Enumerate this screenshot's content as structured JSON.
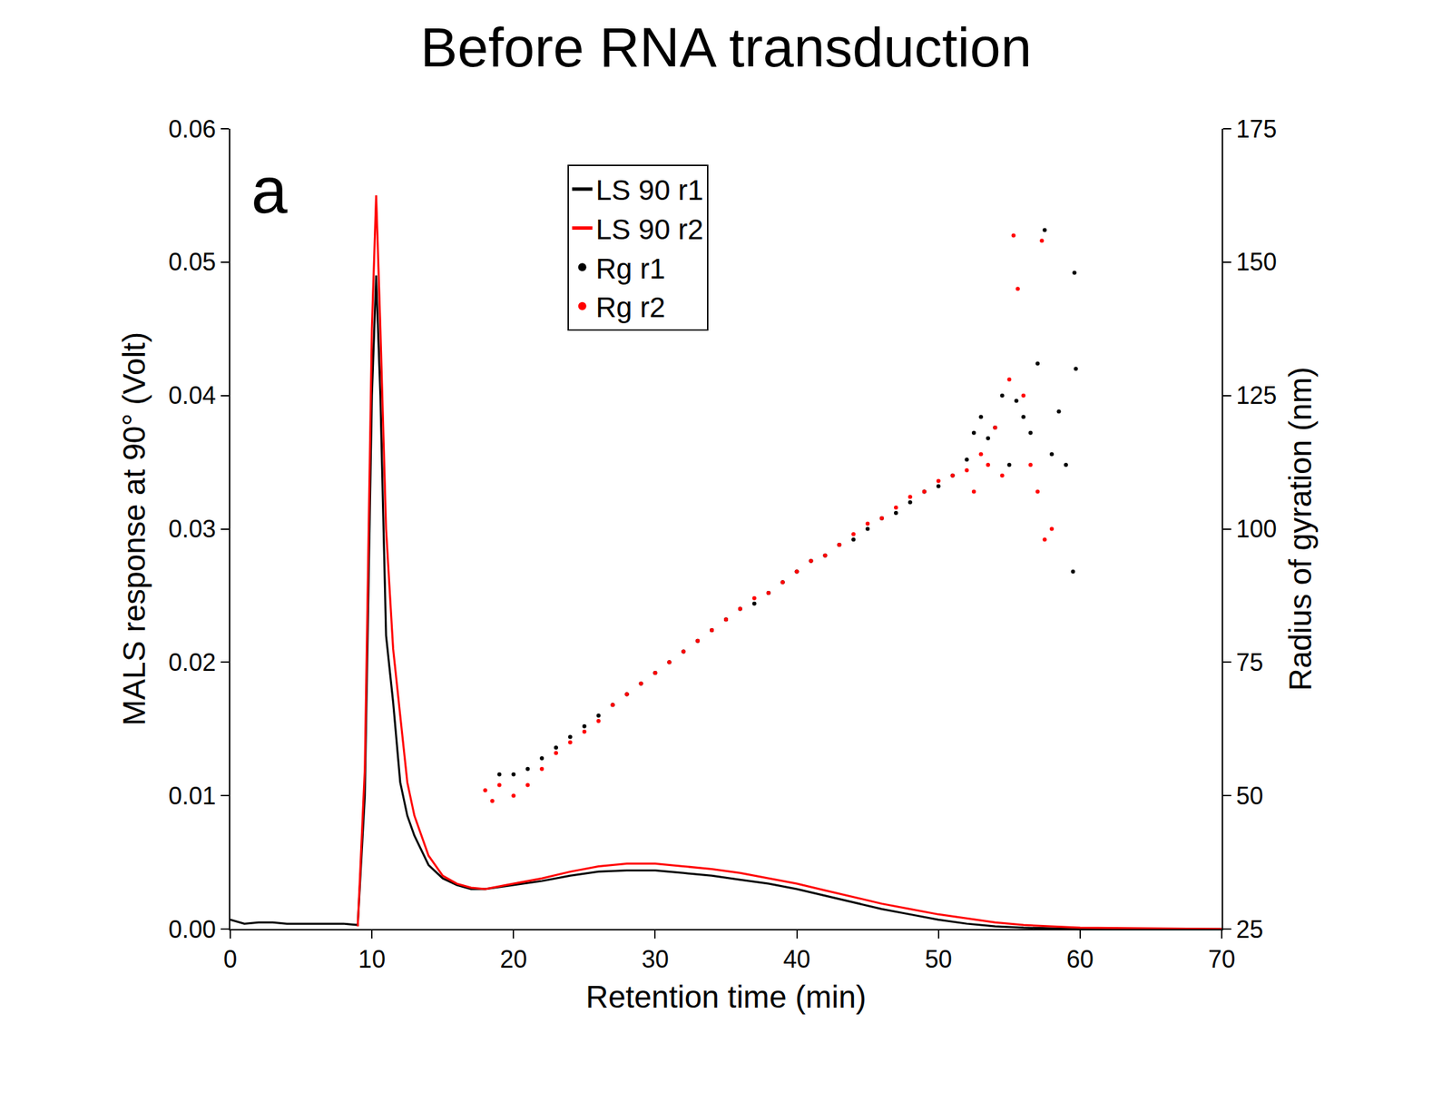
{
  "chart_data": {
    "type": "line",
    "title": "Before RNA transduction",
    "annotations": [
      "a"
    ],
    "x_label": "Retention time (min)",
    "y_label": "MALS response at 90° (Volt)",
    "y2_label": "Radius of gyration (nm)",
    "xlim": [
      0,
      70
    ],
    "xticks": [
      0,
      10,
      20,
      30,
      40,
      50,
      60,
      70
    ],
    "ylim": [
      0,
      0.06
    ],
    "yticks": [
      {
        "value": 0,
        "label": "0.00"
      },
      0.01,
      0.02,
      0.03,
      0.04,
      0.05,
      0.06
    ],
    "y2lim": [
      25,
      175
    ],
    "y2ticks": [
      25,
      50,
      75,
      100,
      125,
      150,
      175
    ],
    "grid": false,
    "legend": "top",
    "series": [
      {
        "name": "LS 90 r1",
        "type": "line",
        "color": "#000000",
        "line_style": "solid",
        "x": [
          0,
          1,
          2,
          3,
          4,
          5,
          6,
          7,
          8,
          9,
          9.5,
          10,
          10.3,
          10.6,
          11,
          11.5,
          12,
          12.5,
          13,
          14,
          15,
          16,
          17,
          18,
          20,
          22,
          24,
          26,
          28,
          30,
          32,
          34,
          36,
          38,
          40,
          42,
          44,
          46,
          48,
          50,
          52,
          54,
          56,
          58,
          60,
          65,
          70
        ],
        "values": [
          0.0007,
          0.0004,
          0.0005,
          0.0005,
          0.0004,
          0.0004,
          0.0004,
          0.0004,
          0.0004,
          0.0003,
          0.01,
          0.04,
          0.049,
          0.04,
          0.022,
          0.017,
          0.011,
          0.0085,
          0.007,
          0.0048,
          0.0038,
          0.0033,
          0.003,
          0.003,
          0.0033,
          0.0036,
          0.004,
          0.0043,
          0.0044,
          0.0044,
          0.0042,
          0.004,
          0.0037,
          0.0034,
          0.003,
          0.0025,
          0.002,
          0.0015,
          0.0011,
          0.0007,
          0.0004,
          0.0002,
          0.0001,
          5e-05,
          0,
          0,
          0
        ]
      },
      {
        "name": "LS 90 r2",
        "type": "line",
        "color": "#ff0000",
        "line_style": "solid",
        "x": [
          9,
          9.5,
          10,
          10.3,
          10.6,
          11,
          11.5,
          12,
          12.5,
          13,
          14,
          15,
          16,
          17,
          18,
          20,
          22,
          24,
          26,
          28,
          30,
          32,
          34,
          36,
          38,
          40,
          42,
          44,
          46,
          48,
          50,
          52,
          54,
          56,
          58,
          60,
          65,
          70
        ],
        "values": [
          0.0002,
          0.012,
          0.045,
          0.055,
          0.045,
          0.03,
          0.021,
          0.016,
          0.011,
          0.0085,
          0.0055,
          0.004,
          0.0034,
          0.0031,
          0.003,
          0.0034,
          0.0038,
          0.0043,
          0.0047,
          0.0049,
          0.0049,
          0.0047,
          0.0045,
          0.0042,
          0.0038,
          0.0034,
          0.0029,
          0.0024,
          0.0019,
          0.0015,
          0.0011,
          0.0008,
          0.0005,
          0.0003,
          0.0002,
          0.0001,
          5e-05,
          0
        ]
      },
      {
        "name": "Rg r1",
        "type": "scatter",
        "axis": "y2",
        "color": "#000000",
        "marker": "circle",
        "x": [
          19,
          20,
          21,
          22,
          23,
          24,
          25,
          26,
          27,
          28,
          29,
          30,
          31,
          32,
          33,
          34,
          35,
          36,
          37,
          38,
          39,
          40,
          41,
          42,
          43,
          44,
          45,
          46,
          47,
          48,
          49,
          50,
          51,
          52,
          52.5,
          53,
          53.5,
          54,
          54.5,
          55,
          55.5,
          56,
          56.5,
          57,
          57.5,
          58,
          58.5,
          59,
          59.5,
          59.6,
          59.7
        ],
        "values": [
          54,
          54,
          55,
          57,
          59,
          61,
          63,
          65,
          67,
          69,
          71,
          73,
          75,
          77,
          79,
          81,
          83,
          85,
          86,
          88,
          90,
          92,
          94,
          95,
          97,
          98,
          100,
          102,
          103,
          105,
          107,
          108,
          110,
          113,
          118,
          121,
          117,
          119,
          125,
          112,
          124,
          121,
          118,
          131,
          156,
          114,
          122,
          112,
          92,
          148,
          130
        ]
      },
      {
        "name": "Rg r2",
        "type": "scatter",
        "axis": "y2",
        "color": "#ff0000",
        "marker": "circle",
        "x": [
          18,
          18.5,
          19,
          20,
          21,
          22,
          23,
          24,
          25,
          26,
          27,
          28,
          29,
          30,
          31,
          32,
          33,
          34,
          35,
          36,
          37,
          38,
          39,
          40,
          41,
          42,
          43,
          44,
          45,
          46,
          47,
          48,
          49,
          50,
          51,
          52,
          52.5,
          53,
          53.5,
          54,
          54.5,
          55,
          55.3,
          55.6,
          56,
          56.5,
          57,
          57.3,
          57.5,
          58
        ],
        "values": [
          51,
          49,
          52,
          50,
          52,
          55,
          58,
          60,
          62,
          64,
          67,
          69,
          71,
          73,
          75,
          77,
          79,
          81,
          83,
          85,
          87,
          88,
          90,
          92,
          94,
          95,
          97,
          99,
          101,
          102,
          104,
          106,
          107,
          109,
          110,
          111,
          107,
          114,
          112,
          119,
          110,
          128,
          155,
          145,
          125,
          112,
          107,
          154,
          98,
          100
        ]
      }
    ]
  }
}
